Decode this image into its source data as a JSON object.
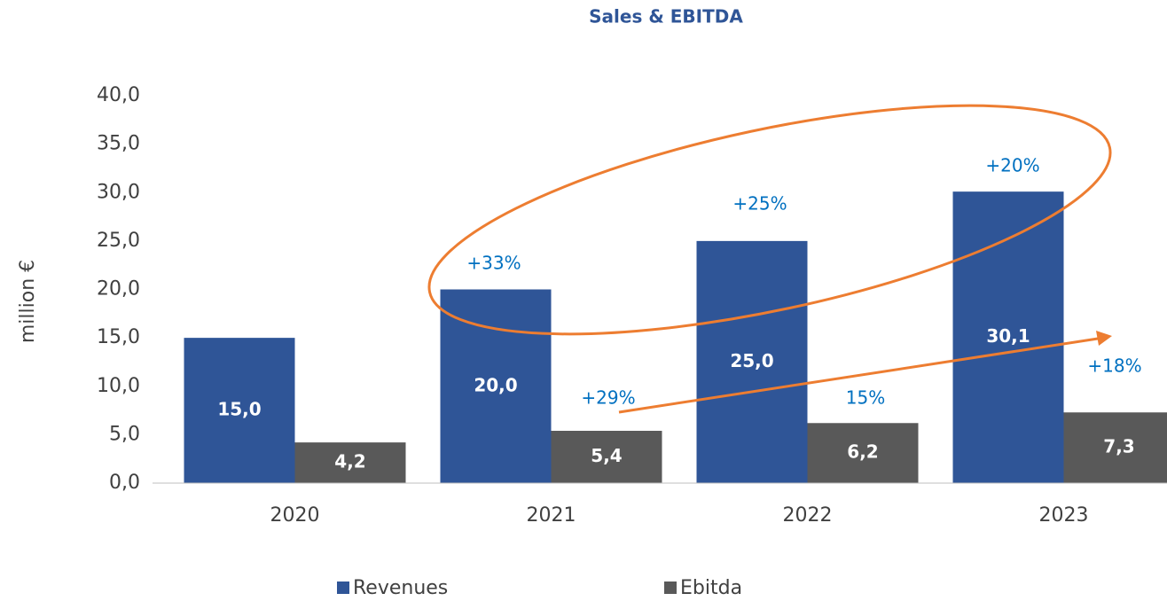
{
  "chart_data": {
    "type": "bar",
    "title": "Sales & EBITDA",
    "y_label": "million €",
    "categories": [
      "2020",
      "2021",
      "2022",
      "2023"
    ],
    "series": [
      {
        "name": "Revenues",
        "color": "#2f5597",
        "values": [
          15,
          20,
          25,
          30.1
        ],
        "value_labels": [
          "15,0",
          "20,0",
          "25,0",
          "30,1"
        ]
      },
      {
        "name": "Ebitda",
        "color": "#595959",
        "values": [
          4.2,
          5.4,
          6.2,
          7.3
        ],
        "value_labels": [
          "4,2",
          "5,4",
          "6,2",
          "7,3"
        ]
      }
    ],
    "ylim": [
      0,
      40
    ],
    "yticks": [
      {
        "value": 0,
        "label": "0,0"
      },
      {
        "value": 5,
        "label": "5,0"
      },
      {
        "value": 10,
        "label": "10,0"
      },
      {
        "value": 15,
        "label": "15,0"
      },
      {
        "value": 20,
        "label": "20,0"
      },
      {
        "value": 25,
        "label": "25,0"
      },
      {
        "value": 30,
        "label": "30,0"
      },
      {
        "value": 35,
        "label": "35,0"
      },
      {
        "value": 40,
        "label": "40,0"
      }
    ],
    "annotations": [
      "+33%",
      "+25%",
      "+20%",
      "+29%",
      "15%",
      "+18%"
    ],
    "legend": "bottom"
  }
}
